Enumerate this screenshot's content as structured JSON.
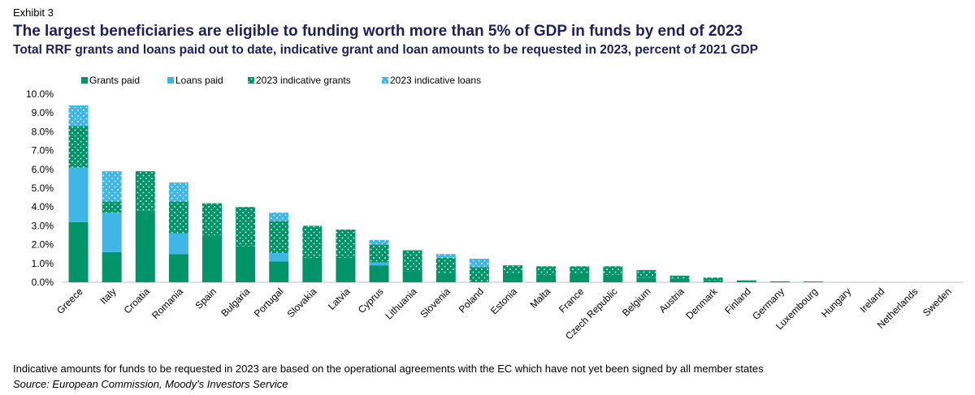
{
  "header": {
    "exhibit": "Exhibit 3",
    "title": "The largest beneficiaries are eligible to funding worth more than 5% of GDP in funds by end of 2023",
    "subtitle": "Total RRF grants and loans paid out to date, indicative grant and loan amounts to be requested in 2023, percent of 2021 GDP"
  },
  "footer": {
    "note": "Indicative amounts for funds to be requested in 2023 are based on the operational agreements with the EC which have not yet been signed by all member states",
    "source": "Source: European Commission, Moody's Investors Service"
  },
  "colors": {
    "grants_paid": "#009469",
    "loans_paid": "#3eb7e6",
    "dot": "#ffffff"
  },
  "chart_data": {
    "type": "bar",
    "stacked": true,
    "legend_position": "top",
    "grid": false,
    "ylim": [
      0,
      10
    ],
    "yticks": [
      "0.0%",
      "1.0%",
      "2.0%",
      "3.0%",
      "4.0%",
      "5.0%",
      "6.0%",
      "7.0%",
      "8.0%",
      "9.0%",
      "10.0%"
    ],
    "categories": [
      "Greece",
      "Italy",
      "Croatia",
      "Romania",
      "Spain",
      "Bulgaria",
      "Portugal",
      "Slovakia",
      "Latvia",
      "Cyprus",
      "Lithuania",
      "Slovenia",
      "Poland",
      "Estonia",
      "Malta",
      "France",
      "Czech Republic",
      "Belgium",
      "Austria",
      "Denmark",
      "Finland",
      "Germany",
      "Luxembourg",
      "Hungary",
      "Ireland",
      "Netherlands",
      "Sweden"
    ],
    "series": [
      {
        "name": "Grants paid",
        "pattern": "solid",
        "color": "#009469",
        "values": [
          3.2,
          1.6,
          3.8,
          1.5,
          2.5,
          1.9,
          1.1,
          1.3,
          1.3,
          0.9,
          0.6,
          0.5,
          0.0,
          0.5,
          0.4,
          0.5,
          0.4,
          0.25,
          0.2,
          0.1,
          0.1,
          0.05,
          0.04,
          0.0,
          0.0,
          0.0,
          0.0
        ]
      },
      {
        "name": "Loans paid",
        "pattern": "solid",
        "color": "#3eb7e6",
        "values": [
          2.9,
          2.1,
          0.0,
          1.1,
          0.0,
          0.0,
          0.45,
          0.0,
          0.0,
          0.15,
          0.0,
          0.0,
          0.0,
          0.0,
          0.0,
          0.0,
          0.0,
          0.0,
          0.0,
          0.0,
          0.0,
          0.0,
          0.0,
          0.0,
          0.0,
          0.0,
          0.0
        ]
      },
      {
        "name": "2023 indicative grants",
        "pattern": "dotted",
        "color": "#009469",
        "values": [
          2.2,
          0.6,
          2.1,
          1.7,
          1.7,
          2.1,
          1.7,
          1.7,
          1.5,
          0.95,
          1.1,
          0.8,
          0.8,
          0.4,
          0.45,
          0.35,
          0.45,
          0.4,
          0.15,
          0.15,
          0.0,
          0.0,
          0.0,
          0.0,
          0.0,
          0.0,
          0.0
        ]
      },
      {
        "name": "2023 indicative loans",
        "pattern": "dotted",
        "color": "#3eb7e6",
        "values": [
          1.1,
          1.6,
          0.0,
          1.0,
          0.0,
          0.0,
          0.45,
          0.0,
          0.0,
          0.25,
          0.0,
          0.2,
          0.45,
          0.0,
          0.0,
          0.0,
          0.0,
          0.0,
          0.0,
          0.0,
          0.0,
          0.0,
          0.0,
          0.0,
          0.0,
          0.0,
          0.0
        ]
      }
    ]
  }
}
